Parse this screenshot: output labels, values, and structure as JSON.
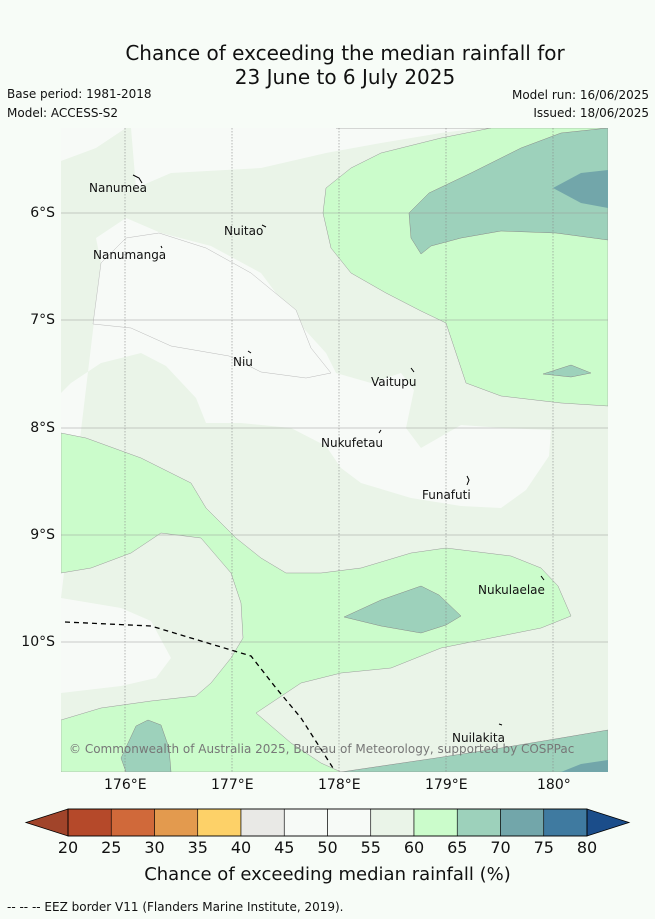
{
  "title": {
    "line1": "Chance of exceeding the median rainfall for",
    "line2": "23 June to 6 July 2025"
  },
  "meta": {
    "base_period": "Base period: 1981-2018",
    "model": "Model: ACCESS-S2",
    "model_run": "Model run: 16/06/2025",
    "issued": "Issued: 18/06/2025"
  },
  "map": {
    "lat_labels": [
      "6°S",
      "7°S",
      "8°S",
      "9°S",
      "10°S"
    ],
    "lon_labels": [
      "176°E",
      "177°E",
      "178°E",
      "179°E",
      "180°"
    ],
    "islands": [
      "Nanumea",
      "Nuitao",
      "Nanumanga",
      "Niu",
      "Vaitupu",
      "Nukufetau",
      "Funafuti",
      "Nukulaelae",
      "Nuilakita"
    ],
    "copyright": "© Commonwealth of Australia 2025, Bureau of Meteorology, supported by COSPPac"
  },
  "colorbar": {
    "ticks": [
      "20",
      "25",
      "30",
      "35",
      "40",
      "45",
      "50",
      "55",
      "60",
      "65",
      "70",
      "75",
      "80"
    ],
    "colors": [
      "#b5492a",
      "#d0693a",
      "#e39a4e",
      "#fdd168",
      "#e9e9e6",
      "#f7faf7",
      "#f7faf7",
      "#eaf4e8",
      "#cbfccb",
      "#9dd1bb",
      "#72a6aa",
      "#3f7aa0"
    ],
    "under_color": "#a1442a",
    "over_color": "#1b4d8a",
    "label": "Chance of exceeding median rainfall (%)"
  },
  "legend": {
    "eez_note": "-- -- -- EEZ border V11 (Flanders Marine Institute, 2019)."
  }
}
